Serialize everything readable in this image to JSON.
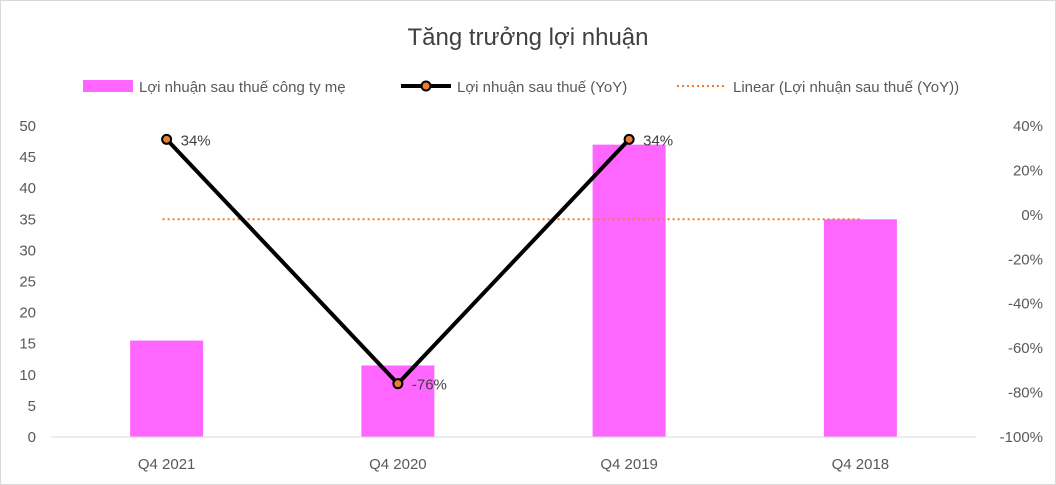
{
  "chart_data": {
    "type": "bar",
    "title": "Tăng trưởng lợi nhuận",
    "categories": [
      "Q4 2021",
      "Q4 2020",
      "Q4 2019",
      "Q4 2018"
    ],
    "series": [
      {
        "name": "Lợi nhuận sau thuế công ty mẹ",
        "type": "bar",
        "axis": "left",
        "values": [
          15.5,
          11.5,
          47,
          35
        ],
        "color": "#ff66ff"
      },
      {
        "name": "Lợi nhuận sau thuế (YoY)",
        "type": "line",
        "axis": "right",
        "values": [
          0.34,
          -0.76,
          0.34,
          null
        ],
        "data_labels": [
          "34%",
          "-76%",
          "34%",
          ""
        ],
        "color": "#000000",
        "marker_color": "#ed7d31"
      },
      {
        "name": "Linear (Lợi nhuận sau thuế (YoY))",
        "type": "trendline",
        "axis": "right",
        "values": [
          -0.02,
          -0.02,
          -0.02,
          -0.02
        ],
        "color": "#ed7d31",
        "style": "dotted"
      }
    ],
    "left_axis": {
      "ylim": [
        0,
        50
      ],
      "ticks": [
        0,
        5,
        10,
        15,
        20,
        25,
        30,
        35,
        40,
        45,
        50
      ],
      "tick_labels": [
        "0",
        "5",
        "10",
        "15",
        "20",
        "25",
        "30",
        "35",
        "40",
        "45",
        "50"
      ]
    },
    "right_axis": {
      "ylim": [
        -1,
        0.4
      ],
      "ticks": [
        -1,
        -0.8,
        -0.6,
        -0.4,
        -0.2,
        0,
        0.2,
        0.4
      ],
      "tick_labels": [
        "-100%",
        "-80%",
        "-60%",
        "-40%",
        "-20%",
        "0%",
        "20%",
        "40%"
      ]
    },
    "legend_position": "top",
    "grid": false
  }
}
